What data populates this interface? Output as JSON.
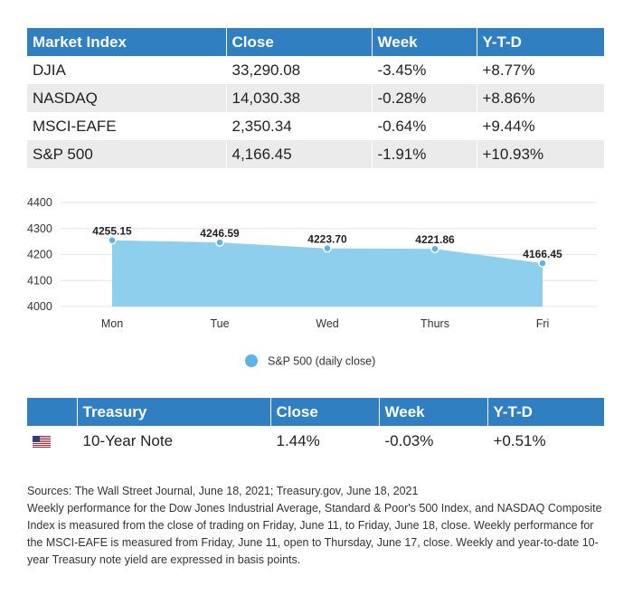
{
  "market_table": {
    "headers": [
      "Market Index",
      "Close",
      "Week",
      "Y-T-D"
    ],
    "rows": [
      [
        "DJIA",
        "33,290.08",
        "-3.45%",
        "+8.77%"
      ],
      [
        "NASDAQ",
        "14,030.38",
        "-0.28%",
        "+8.86%"
      ],
      [
        "MSCI-EAFE",
        "2,350.34",
        "-0.64%",
        "+9.44%"
      ],
      [
        "S&P 500",
        "4,166.45",
        "-1.91%",
        "+10.93%"
      ]
    ]
  },
  "chart_data": {
    "type": "area",
    "categories": [
      "Mon",
      "Tue",
      "Wed",
      "Thurs",
      "Fri"
    ],
    "series": [
      {
        "name": "S&P 500 (daily close)",
        "values": [
          4255.15,
          4246.59,
          4223.7,
          4221.86,
          4166.45
        ]
      }
    ],
    "data_labels": [
      "4255.15",
      "4246.59",
      "4223.70",
      "4221.86",
      "4166.45"
    ],
    "yticks": [
      4000,
      4100,
      4200,
      4300,
      4400
    ],
    "ylim": [
      4000,
      4400
    ],
    "grid": true,
    "legend_position": "bottom",
    "fill_color": "#8ecfee",
    "point_color": "#5ab4e5"
  },
  "treasury_table": {
    "headers": [
      "",
      "Treasury",
      "Close",
      "Week",
      "Y-T-D"
    ],
    "rows": [
      {
        "flag_icon": "us-flag-icon",
        "name": "10-Year Note",
        "close": "1.44%",
        "week": "-0.03%",
        "ytd": "+0.51%"
      }
    ]
  },
  "footnotes": {
    "sources": "Sources: The Wall Street Journal, June 18, 2021; Treasury.gov, June 18, 2021",
    "description": "Weekly performance for the Dow Jones Industrial Average, Standard & Poor's 500 Index, and NASDAQ Composite Index is measured from the close of trading on Friday, June 11, to Friday, June 18, close. Weekly performance for the MSCI-EAFE is measured from Friday, June 11, open to Thursday, June 17, close. Weekly and year-to-date 10-year Treasury note yield are expressed in basis points."
  },
  "colors": {
    "header": "#2f7fc1",
    "stripe": "#ebebeb"
  }
}
